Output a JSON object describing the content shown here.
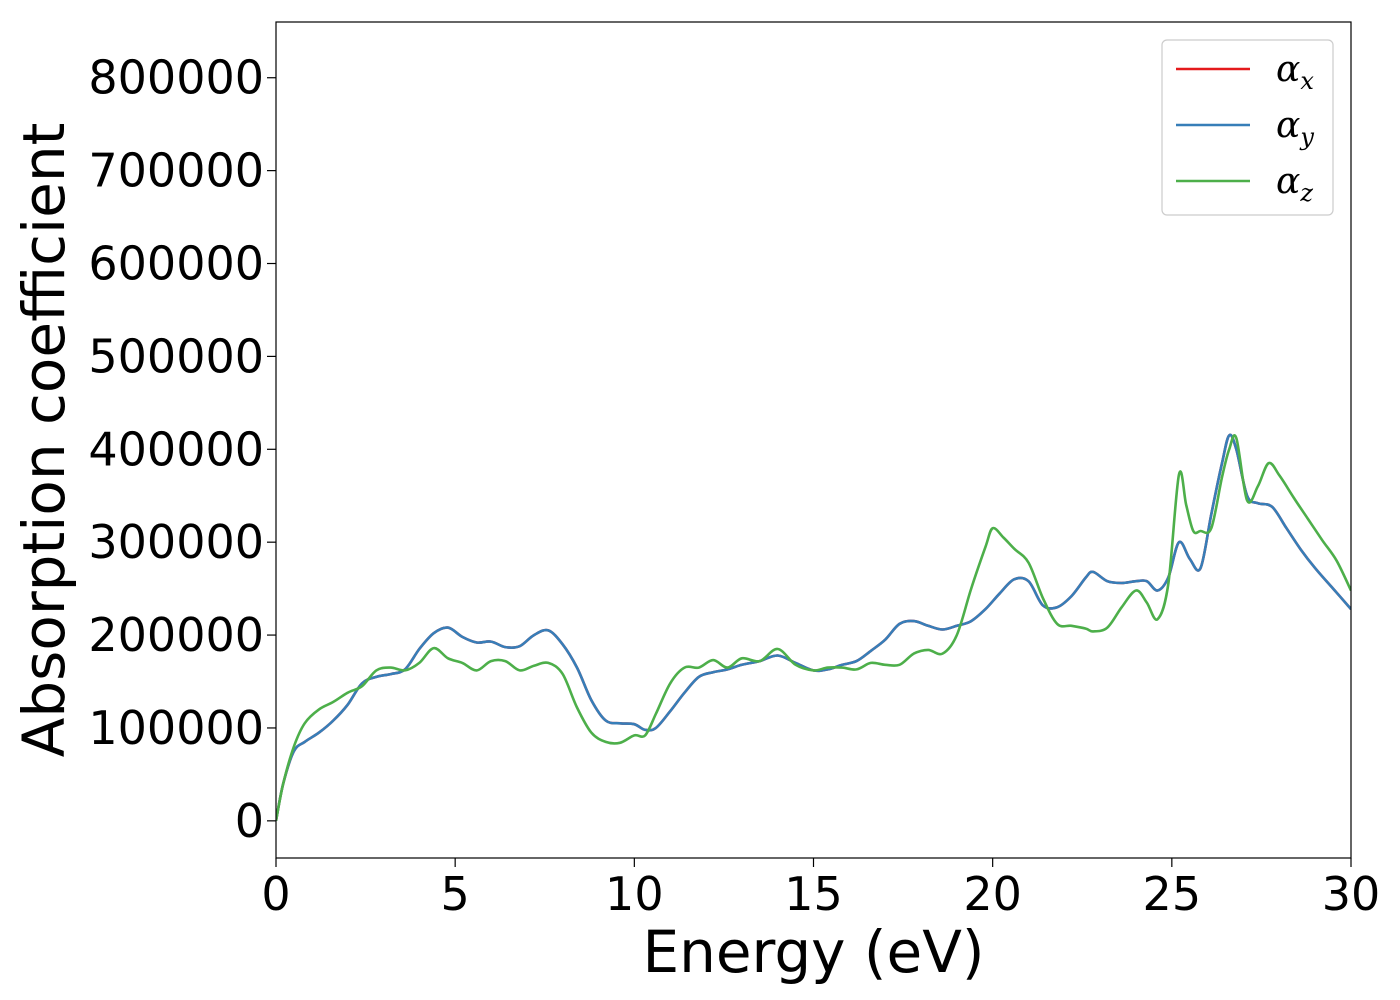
{
  "chart_data": {
    "type": "line",
    "title": "",
    "xlabel": "Energy (eV)",
    "ylabel": "Absorption coefficient",
    "xlim": [
      0,
      30
    ],
    "ylim": [
      -40000,
      860000
    ],
    "xticks": [
      0,
      5,
      10,
      15,
      20,
      25,
      30
    ],
    "yticks": [
      0,
      100000,
      200000,
      300000,
      400000,
      500000,
      600000,
      700000,
      800000
    ],
    "grid": false,
    "legend_position": "top-right",
    "series": [
      {
        "name": "αx",
        "symbol": "α",
        "subscript": "x",
        "color": "#e41a1c",
        "x": [
          0,
          0.2,
          0.5,
          0.8,
          1.2,
          1.6,
          2.0,
          2.4,
          2.8,
          3.2,
          3.6,
          4.0,
          4.4,
          4.8,
          5.2,
          5.6,
          6.0,
          6.4,
          6.8,
          7.2,
          7.6,
          8.0,
          8.4,
          8.8,
          9.2,
          9.6,
          10.0,
          10.3,
          10.6,
          11.0,
          11.4,
          11.8,
          12.2,
          12.6,
          13.0,
          13.5,
          14.0,
          14.5,
          15.0,
          15.4,
          15.8,
          16.2,
          16.6,
          17.0,
          17.4,
          17.8,
          18.2,
          18.6,
          19.0,
          19.4,
          19.8,
          20.2,
          20.6,
          21.0,
          21.4,
          21.8,
          22.2,
          22.6,
          22.8,
          23.2,
          23.6,
          24.0,
          24.3,
          24.6,
          24.9,
          25.2,
          25.5,
          25.8,
          26.1,
          26.4,
          26.6,
          26.8,
          27.1,
          27.4,
          27.8,
          28.2,
          28.6,
          29.0,
          29.5,
          30.0
        ],
        "y": [
          0,
          40000,
          75000,
          85000,
          95000,
          108000,
          125000,
          148000,
          155000,
          158000,
          163000,
          185000,
          202000,
          208000,
          198000,
          192000,
          193000,
          187000,
          188000,
          200000,
          205000,
          190000,
          165000,
          130000,
          108000,
          105000,
          104000,
          98000,
          100000,
          118000,
          138000,
          155000,
          160000,
          163000,
          168000,
          172000,
          178000,
          170000,
          162000,
          163000,
          168000,
          172000,
          183000,
          195000,
          212000,
          215000,
          210000,
          206000,
          210000,
          215000,
          228000,
          245000,
          260000,
          258000,
          232000,
          230000,
          242000,
          262000,
          268000,
          258000,
          256000,
          258000,
          258000,
          248000,
          262000,
          300000,
          282000,
          272000,
          330000,
          385000,
          415000,
          400000,
          350000,
          342000,
          338000,
          315000,
          292000,
          272000,
          250000,
          228000
        ]
      },
      {
        "name": "αy",
        "symbol": "α",
        "subscript": "y",
        "color": "#377eb8",
        "x": [
          0,
          0.2,
          0.5,
          0.8,
          1.2,
          1.6,
          2.0,
          2.4,
          2.8,
          3.2,
          3.6,
          4.0,
          4.4,
          4.8,
          5.2,
          5.6,
          6.0,
          6.4,
          6.8,
          7.2,
          7.6,
          8.0,
          8.4,
          8.8,
          9.2,
          9.6,
          10.0,
          10.3,
          10.6,
          11.0,
          11.4,
          11.8,
          12.2,
          12.6,
          13.0,
          13.5,
          14.0,
          14.5,
          15.0,
          15.4,
          15.8,
          16.2,
          16.6,
          17.0,
          17.4,
          17.8,
          18.2,
          18.6,
          19.0,
          19.4,
          19.8,
          20.2,
          20.6,
          21.0,
          21.4,
          21.8,
          22.2,
          22.6,
          22.8,
          23.2,
          23.6,
          24.0,
          24.3,
          24.6,
          24.9,
          25.2,
          25.5,
          25.8,
          26.1,
          26.4,
          26.6,
          26.8,
          27.1,
          27.4,
          27.8,
          28.2,
          28.6,
          29.0,
          29.5,
          30.0
        ],
        "y": [
          0,
          40000,
          75000,
          85000,
          95000,
          108000,
          125000,
          148000,
          155000,
          158000,
          163000,
          185000,
          202000,
          208000,
          198000,
          192000,
          193000,
          187000,
          188000,
          200000,
          205000,
          190000,
          165000,
          130000,
          108000,
          105000,
          104000,
          98000,
          100000,
          118000,
          138000,
          155000,
          160000,
          163000,
          168000,
          172000,
          178000,
          170000,
          162000,
          163000,
          168000,
          172000,
          183000,
          195000,
          212000,
          215000,
          210000,
          206000,
          210000,
          215000,
          228000,
          245000,
          260000,
          258000,
          232000,
          230000,
          242000,
          262000,
          268000,
          258000,
          256000,
          258000,
          258000,
          248000,
          262000,
          300000,
          282000,
          272000,
          330000,
          385000,
          415000,
          400000,
          350000,
          342000,
          338000,
          315000,
          292000,
          272000,
          250000,
          228000
        ]
      },
      {
        "name": "αz",
        "symbol": "α",
        "subscript": "z",
        "color": "#4daf4a",
        "x": [
          0,
          0.2,
          0.5,
          0.8,
          1.2,
          1.6,
          2.0,
          2.4,
          2.8,
          3.2,
          3.6,
          4.0,
          4.4,
          4.8,
          5.2,
          5.6,
          6.0,
          6.4,
          6.8,
          7.2,
          7.6,
          8.0,
          8.4,
          8.8,
          9.2,
          9.6,
          10.0,
          10.3,
          10.6,
          11.0,
          11.4,
          11.8,
          12.2,
          12.6,
          13.0,
          13.5,
          14.0,
          14.5,
          15.0,
          15.4,
          15.8,
          16.2,
          16.6,
          17.0,
          17.4,
          17.8,
          18.2,
          18.6,
          19.0,
          19.4,
          19.8,
          20.0,
          20.3,
          20.6,
          21.0,
          21.4,
          21.8,
          22.2,
          22.6,
          22.8,
          23.2,
          23.6,
          24.0,
          24.3,
          24.6,
          24.9,
          25.2,
          25.4,
          25.6,
          25.8,
          26.1,
          26.4,
          26.6,
          26.8,
          27.1,
          27.4,
          27.7,
          28.0,
          28.4,
          28.8,
          29.2,
          29.6,
          30.0
        ],
        "y": [
          0,
          40000,
          80000,
          105000,
          120000,
          128000,
          138000,
          145000,
          162000,
          165000,
          162000,
          170000,
          186000,
          175000,
          170000,
          162000,
          172000,
          172000,
          162000,
          167000,
          170000,
          158000,
          122000,
          95000,
          85000,
          84000,
          92000,
          92000,
          115000,
          148000,
          165000,
          165000,
          173000,
          165000,
          175000,
          172000,
          185000,
          168000,
          162000,
          165000,
          165000,
          163000,
          170000,
          168000,
          168000,
          180000,
          184000,
          180000,
          200000,
          250000,
          295000,
          315000,
          305000,
          293000,
          278000,
          240000,
          212000,
          210000,
          207000,
          204000,
          208000,
          230000,
          248000,
          235000,
          217000,
          255000,
          373000,
          340000,
          312000,
          312000,
          315000,
          370000,
          400000,
          412000,
          345000,
          360000,
          385000,
          372000,
          348000,
          325000,
          302000,
          280000,
          248000
        ]
      }
    ]
  }
}
